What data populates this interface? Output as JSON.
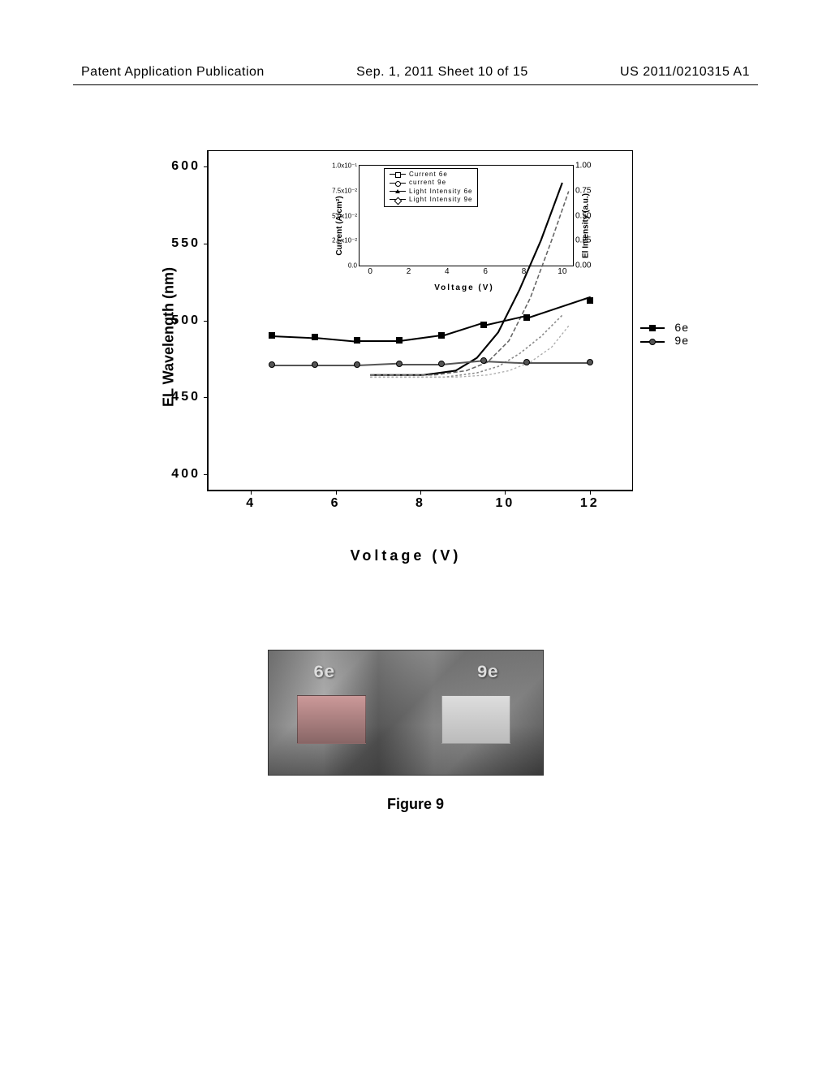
{
  "header": {
    "left": "Patent Application Publication",
    "center": "Sep. 1, 2011  Sheet 10 of 15",
    "right": "US 2011/0210315 A1"
  },
  "main_chart": {
    "type": "line",
    "y_label": "EL Wavelength (nm)",
    "x_label": "Voltage (V)",
    "y_ticks": [
      400,
      450,
      500,
      550,
      600
    ],
    "x_ticks": [
      4,
      6,
      8,
      10,
      12
    ],
    "xlim": [
      3,
      13
    ],
    "ylim": [
      390,
      610
    ],
    "series": {
      "6e": {
        "label": "6e",
        "marker": "square",
        "color": "#000000",
        "data": [
          {
            "x": 4.5,
            "y": 490
          },
          {
            "x": 5.5,
            "y": 489
          },
          {
            "x": 6.5,
            "y": 487
          },
          {
            "x": 7.5,
            "y": 487
          },
          {
            "x": 8.5,
            "y": 490
          },
          {
            "x": 9.5,
            "y": 497
          },
          {
            "x": 10.5,
            "y": 502
          },
          {
            "x": 12.0,
            "y": 513
          }
        ]
      },
      "9e": {
        "label": "9e",
        "marker": "circle",
        "color": "#555555",
        "data": [
          {
            "x": 4.5,
            "y": 471
          },
          {
            "x": 5.5,
            "y": 471
          },
          {
            "x": 6.5,
            "y": 471
          },
          {
            "x": 7.5,
            "y": 472
          },
          {
            "x": 8.5,
            "y": 472
          },
          {
            "x": 9.5,
            "y": 474
          },
          {
            "x": 10.5,
            "y": 473
          },
          {
            "x": 12.0,
            "y": 473
          }
        ]
      }
    }
  },
  "inset_chart": {
    "type": "line",
    "y_label": "Current (A/cm²)",
    "y2_label": "El Intensity (a.u.)",
    "x_label": "Voltage (V)",
    "y_ticks": [
      "0.0",
      "2.5x10⁻²",
      "5.0x10⁻²",
      "7.5x10⁻²",
      "1.0x10⁻¹"
    ],
    "y2_ticks": [
      "0.00",
      "0.25",
      "0.50",
      "0.75",
      "1.00"
    ],
    "x_ticks": [
      0,
      2,
      4,
      6,
      8,
      10
    ],
    "legend": [
      {
        "label": "Current 6e",
        "symbol": "square"
      },
      {
        "label": "current 9e",
        "symbol": "circle"
      },
      {
        "label": "Light Intensity 6e",
        "symbol": "triangle"
      },
      {
        "label": "Light Intensity 9e",
        "symbol": "diamond"
      }
    ]
  },
  "photo": {
    "label_left": "6e",
    "label_right": "9e"
  },
  "caption": "Figure 9"
}
